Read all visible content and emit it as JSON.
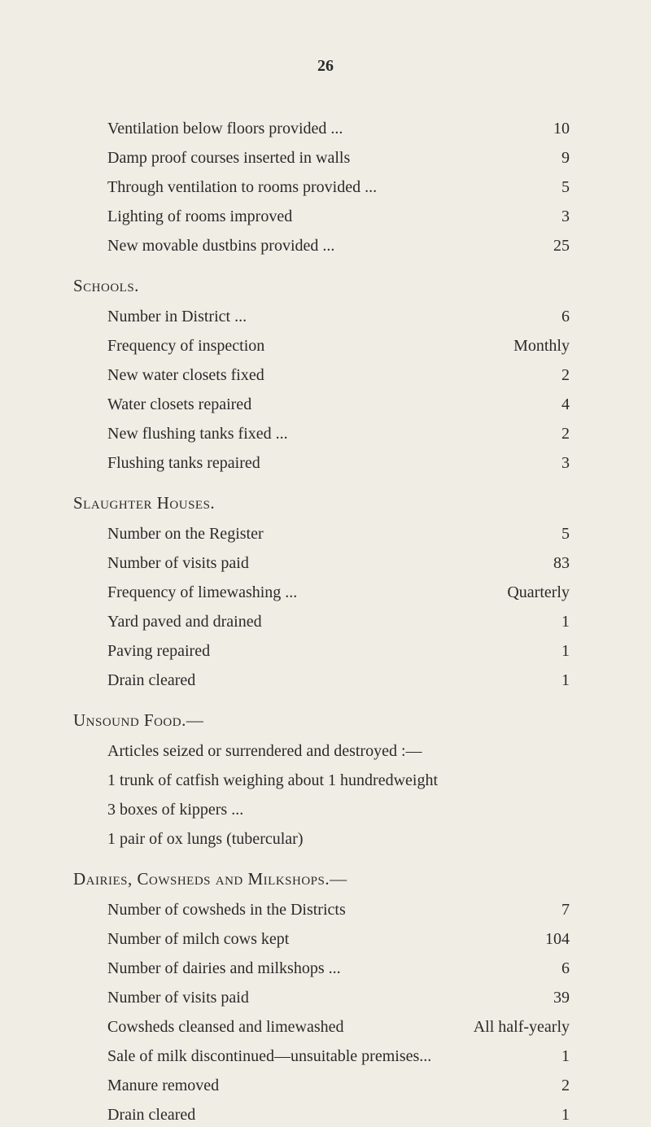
{
  "page_number": "26",
  "background_color": "#f0ede4",
  "text_color": "#2a2a2a",
  "font_family": "Georgia, serif",
  "body_fontsize": 20,
  "heading_fontsize": 21,
  "top_items": [
    {
      "label": "Ventilation below floors provided ...",
      "value": "10"
    },
    {
      "label": "Damp proof courses inserted in walls",
      "value": "9"
    },
    {
      "label": "Through ventilation to rooms provided ...",
      "value": "5"
    },
    {
      "label": "Lighting of rooms improved",
      "value": "3"
    },
    {
      "label": "New movable dustbins provided ...",
      "value": "25"
    }
  ],
  "schools": {
    "heading": "Schools.",
    "items": [
      {
        "label": "Number in District ...",
        "value": "6"
      },
      {
        "label": "Frequency of inspection",
        "value": "Monthly"
      },
      {
        "label": "New water closets fixed",
        "value": "2"
      },
      {
        "label": "Water closets repaired",
        "value": "4"
      },
      {
        "label": "New flushing tanks fixed ...",
        "value": "2"
      },
      {
        "label": "Flushing tanks repaired",
        "value": "3"
      }
    ]
  },
  "slaughter": {
    "heading": "Slaughter Houses.",
    "items": [
      {
        "label": "Number on the Register",
        "value": "5"
      },
      {
        "label": "Number of visits paid",
        "value": "83"
      },
      {
        "label": "Frequency of limewashing ...",
        "value": "Quarterly"
      },
      {
        "label": "Yard paved and drained",
        "value": "1"
      },
      {
        "label": "Paving repaired",
        "value": "1"
      },
      {
        "label": "Drain cleared",
        "value": "1"
      }
    ]
  },
  "unsound": {
    "heading": "Unsound Food.—",
    "lines": [
      "Articles seized or surrendered and destroyed :—",
      "1 trunk of catfish weighing about 1 hundredweight",
      "3 boxes of kippers ...",
      "1 pair of ox lungs (tubercular)"
    ]
  },
  "dairies": {
    "heading": "Dairies, Cowsheds and Milkshops.—",
    "items": [
      {
        "label": "Number of cowsheds in the Districts",
        "value": "7"
      },
      {
        "label": "Number of milch cows kept",
        "value": "104"
      },
      {
        "label": "Number of dairies and milkshops ...",
        "value": "6"
      },
      {
        "label": "Number of visits paid",
        "value": "39"
      },
      {
        "label": "Cowsheds cleansed and limewashed",
        "value": "All half-yearly"
      },
      {
        "label": "Sale of milk discontinued—unsuitable premises...",
        "value": "1"
      },
      {
        "label": "Manure removed",
        "value": "2"
      },
      {
        "label": "Drain cleared",
        "value": "1"
      }
    ]
  }
}
